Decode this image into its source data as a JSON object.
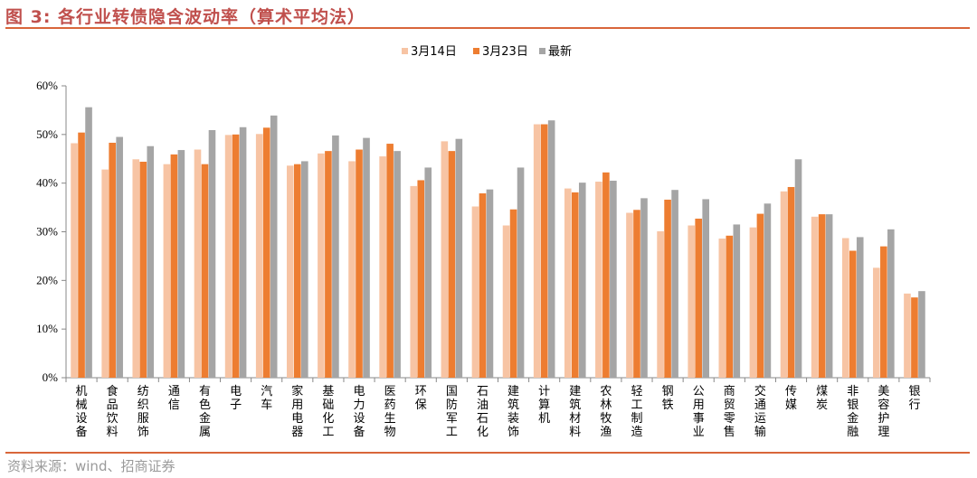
{
  "figure": {
    "title": "图 3: 各行业转债隐含波动率（算术平均法）",
    "source": "资料来源：wind、招商证券"
  },
  "colors": {
    "title": "#c0504d",
    "rule": "#d9663a",
    "series": [
      "#f7c4a4",
      "#ed7d31",
      "#a5a5a5"
    ]
  },
  "chart_data": {
    "type": "bar",
    "categories": [
      "机械设备",
      "食品饮料",
      "纺织服饰",
      "通信",
      "有色金属",
      "电子",
      "汽车",
      "家用电器",
      "基础化工",
      "电力设备",
      "医药生物",
      "环保",
      "国防军工",
      "石油石化",
      "建筑装饰",
      "计算机",
      "建筑材料",
      "农林牧渔",
      "轻工制造",
      "钢铁",
      "公用事业",
      "商贸零售",
      "交通运输",
      "传媒",
      "煤炭",
      "非银金融",
      "美容护理",
      "银行"
    ],
    "series": [
      {
        "name": "3月14日",
        "values": [
          48.2,
          42.8,
          44.9,
          43.9,
          46.9,
          49.9,
          50.1,
          43.6,
          46.1,
          44.5,
          45.5,
          39.4,
          48.6,
          35.2,
          31.3,
          52.1,
          38.9,
          40.3,
          33.9,
          30.1,
          31.3,
          28.6,
          30.9,
          38.3,
          33.1,
          28.7,
          22.6,
          17.3
        ]
      },
      {
        "name": "3月23日",
        "values": [
          50.4,
          48.3,
          44.4,
          45.9,
          43.9,
          50.0,
          51.4,
          43.9,
          46.6,
          46.9,
          48.1,
          40.6,
          46.6,
          37.9,
          34.6,
          52.1,
          38.1,
          42.2,
          34.5,
          36.6,
          32.7,
          29.2,
          33.7,
          39.2,
          33.6,
          26.1,
          27.0,
          16.5
        ]
      },
      {
        "name": "最新",
        "values": [
          55.6,
          49.5,
          47.6,
          46.8,
          50.9,
          51.5,
          53.9,
          44.5,
          49.8,
          49.3,
          46.6,
          43.2,
          49.1,
          38.7,
          43.2,
          52.9,
          40.1,
          40.5,
          36.9,
          38.6,
          36.7,
          31.5,
          35.8,
          44.9,
          33.6,
          28.9,
          30.5,
          17.8
        ]
      }
    ],
    "yticks": [
      "0%",
      "10%",
      "20%",
      "30%",
      "40%",
      "50%",
      "60%"
    ],
    "ylim": [
      0,
      60
    ],
    "legend_position": "top-center",
    "grid": false
  }
}
